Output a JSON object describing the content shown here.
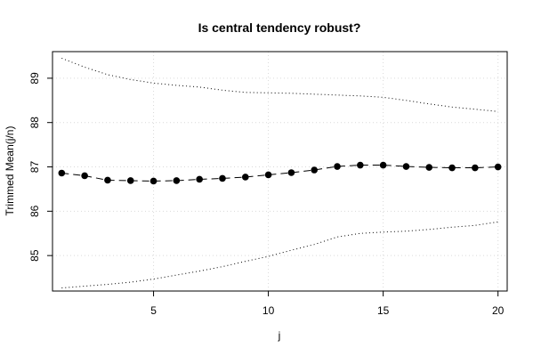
{
  "chart_data": {
    "type": "line",
    "title": "Is central tendency robust?",
    "xlabel": "j",
    "ylabel": "Trimmed Mean(j/n)",
    "xlim": [
      1,
      20
    ],
    "ylim": [
      84.2,
      89.6
    ],
    "x_ticks": [
      5,
      10,
      15,
      20
    ],
    "y_ticks": [
      85,
      86,
      87,
      88,
      89
    ],
    "grid": true,
    "series": [
      {
        "role": "upper-bound",
        "style": "dotted",
        "x": [
          1,
          2,
          3,
          4,
          5,
          6,
          7,
          8,
          9,
          10,
          11,
          12,
          13,
          14,
          15,
          16,
          17,
          18,
          19,
          20
        ],
        "values": [
          89.45,
          89.25,
          89.08,
          88.97,
          88.89,
          88.84,
          88.8,
          88.73,
          88.68,
          88.67,
          88.66,
          88.64,
          88.62,
          88.6,
          88.57,
          88.5,
          88.42,
          88.35,
          88.3,
          88.25
        ]
      },
      {
        "role": "mean",
        "style": "dashed-with-points",
        "x": [
          1,
          2,
          3,
          4,
          5,
          6,
          7,
          8,
          9,
          10,
          11,
          12,
          13,
          14,
          15,
          16,
          17,
          18,
          19,
          20
        ],
        "values": [
          86.86,
          86.8,
          86.7,
          86.69,
          86.68,
          86.69,
          86.72,
          86.74,
          86.77,
          86.82,
          86.87,
          86.93,
          87.01,
          87.04,
          87.04,
          87.01,
          86.99,
          86.98,
          86.98,
          87.0
        ]
      },
      {
        "role": "lower-bound",
        "style": "dotted",
        "x": [
          1,
          2,
          3,
          4,
          5,
          6,
          7,
          8,
          9,
          10,
          11,
          12,
          13,
          14,
          15,
          16,
          17,
          18,
          19,
          20
        ],
        "values": [
          84.27,
          84.31,
          84.35,
          84.4,
          84.47,
          84.56,
          84.65,
          84.75,
          84.87,
          84.98,
          85.12,
          85.25,
          85.42,
          85.5,
          85.53,
          85.55,
          85.59,
          85.64,
          85.68,
          85.76
        ]
      }
    ]
  }
}
